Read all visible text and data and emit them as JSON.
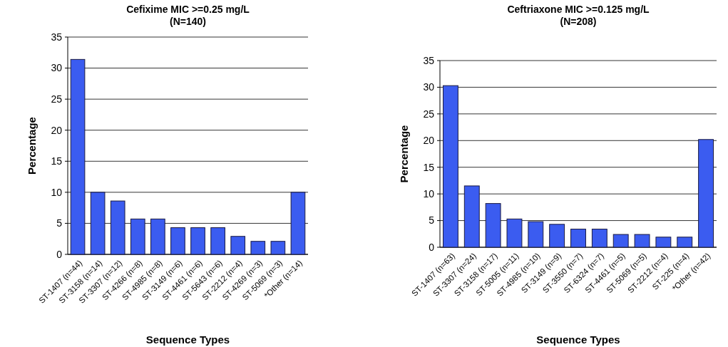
{
  "chart_data": [
    {
      "type": "bar",
      "title": "Cefixime MIC >=0.25 mg/L\n(N=140)",
      "xlabel": "Sequence Types",
      "ylabel": "Percentage",
      "categories": [
        "ST-1407 (n=44)",
        "ST-3158 (n=14)",
        "ST-3307 (n=12)",
        "ST-4266 (n=8)",
        "ST-4985 (n=8)",
        "ST-3149 (n=6)",
        "ST-4461 (n=6)",
        "ST-5643 (n=6)",
        "ST-2212 (n=4)",
        "ST-4269 (n=3)",
        "ST-5069 (n=3)",
        "*Other (n=14)"
      ],
      "values": [
        31.4,
        10,
        8.6,
        5.7,
        5.7,
        4.3,
        4.3,
        4.3,
        2.9,
        2.1,
        2.1,
        10
      ],
      "color": "#3b5cf0",
      "ylim": [
        0,
        35
      ],
      "yticks": [
        0,
        5,
        10,
        15,
        20,
        25,
        30,
        35
      ],
      "grid": "y"
    },
    {
      "type": "bar",
      "title": "Ceftriaxone MIC >=0.125 mg/L\n(N=208)",
      "xlabel": "Sequence Types",
      "ylabel": "Percentage",
      "categories": [
        "ST-1407 (n=63)",
        "ST-3307 (n=24)",
        "ST-3158 (n=17)",
        "ST-5005 (n=11)",
        "ST-4985 (n=10)",
        "ST-3149 (n=9)",
        "ST-3550 (n=7)",
        "ST-6324 (n=7)",
        "ST-4461 (n=5)",
        "ST-5069 (n=5)",
        "ST-2212 (n=4)",
        "ST-225 (n=4)",
        "*Other (n=42)"
      ],
      "values": [
        30.3,
        11.5,
        8.2,
        5.3,
        4.8,
        4.3,
        3.4,
        3.4,
        2.4,
        2.4,
        1.9,
        1.9,
        20.2
      ],
      "color": "#3b5cf0",
      "ylim": [
        0,
        35
      ],
      "yticks": [
        0,
        5,
        10,
        15,
        20,
        25,
        30,
        35
      ],
      "grid": "y"
    }
  ]
}
